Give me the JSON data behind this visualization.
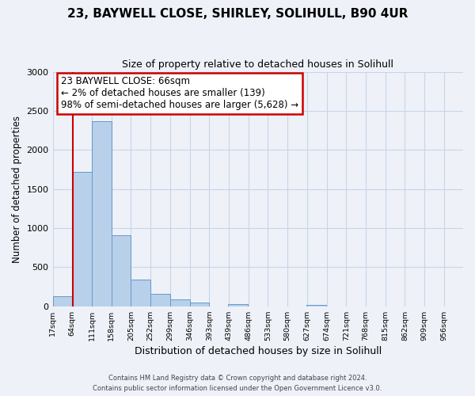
{
  "title": "23, BAYWELL CLOSE, SHIRLEY, SOLIHULL, B90 4UR",
  "subtitle": "Size of property relative to detached houses in Solihull",
  "xlabel": "Distribution of detached houses by size in Solihull",
  "ylabel": "Number of detached properties",
  "bar_left_edges": [
    17,
    64,
    111,
    158,
    205,
    252,
    299,
    346,
    393,
    439,
    486,
    533,
    580,
    627,
    674,
    721,
    768,
    815,
    862,
    909
  ],
  "bar_heights": [
    130,
    1720,
    2370,
    910,
    345,
    155,
    85,
    45,
    0,
    30,
    0,
    0,
    0,
    20,
    0,
    0,
    0,
    0,
    0,
    0
  ],
  "bin_width": 47,
  "bar_color": "#b8d0ea",
  "bar_edge_color": "#6699cc",
  "property_line_x": 66,
  "property_line_color": "#cc0000",
  "annotation_box_color": "#ffffff",
  "annotation_box_edge_color": "#cc0000",
  "annotation_line1": "23 BAYWELL CLOSE: 66sqm",
  "annotation_line2": "← 2% of detached houses are smaller (139)",
  "annotation_line3": "98% of semi-detached houses are larger (5,628) →",
  "ylim": [
    0,
    3000
  ],
  "yticks": [
    0,
    500,
    1000,
    1500,
    2000,
    2500,
    3000
  ],
  "xtick_labels": [
    "17sqm",
    "64sqm",
    "111sqm",
    "158sqm",
    "205sqm",
    "252sqm",
    "299sqm",
    "346sqm",
    "393sqm",
    "439sqm",
    "486sqm",
    "533sqm",
    "580sqm",
    "627sqm",
    "674sqm",
    "721sqm",
    "768sqm",
    "815sqm",
    "862sqm",
    "909sqm",
    "956sqm"
  ],
  "footer_line1": "Contains HM Land Registry data © Crown copyright and database right 2024.",
  "footer_line2": "Contains public sector information licensed under the Open Government Licence v3.0.",
  "grid_color": "#c8d4e8",
  "background_color": "#eef2f8",
  "title_fontsize": 11,
  "subtitle_fontsize": 9
}
